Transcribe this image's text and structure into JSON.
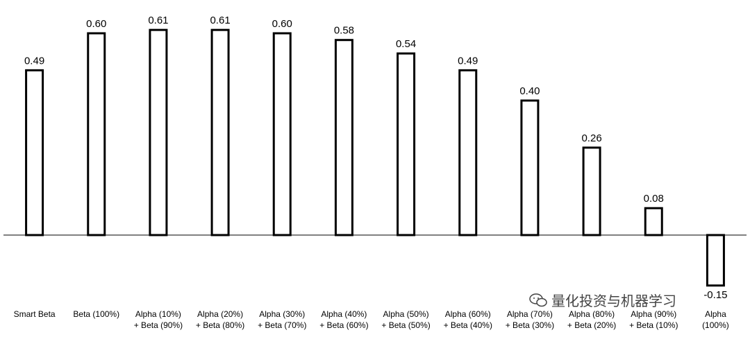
{
  "chart_data": {
    "type": "bar",
    "categories": [
      "Smart Beta",
      "Beta (100%)",
      "Alpha (10%)\n+ Beta (90%)",
      "Alpha (20%)\n+ Beta (80%)",
      "Alpha (30%)\n+ Beta (70%)",
      "Alpha (40%)\n+ Beta (60%)",
      "Alpha (50%)\n+ Beta (50%)",
      "Alpha (60%)\n+ Beta (40%)",
      "Alpha (70%)\n+ Beta (30%)",
      "Alpha (80%)\n+ Beta (20%)",
      "Alpha (90%)\n+ Beta (10%)",
      "Alpha\n(100%)"
    ],
    "values": [
      0.49,
      0.6,
      0.61,
      0.61,
      0.6,
      0.58,
      0.54,
      0.49,
      0.4,
      0.26,
      0.08,
      -0.15
    ],
    "value_labels": [
      "0.49",
      "0.60",
      "0.61",
      "0.61",
      "0.60",
      "0.58",
      "0.54",
      "0.49",
      "0.40",
      "0.26",
      "0.08",
      "-0.15"
    ],
    "ylim": [
      -0.2,
      0.65
    ],
    "grid": false,
    "bar_fill": "#ffffff",
    "bar_stroke": "#000000"
  },
  "watermark": {
    "text": "量化投资与机器学习",
    "icon": "wechat-icon"
  }
}
